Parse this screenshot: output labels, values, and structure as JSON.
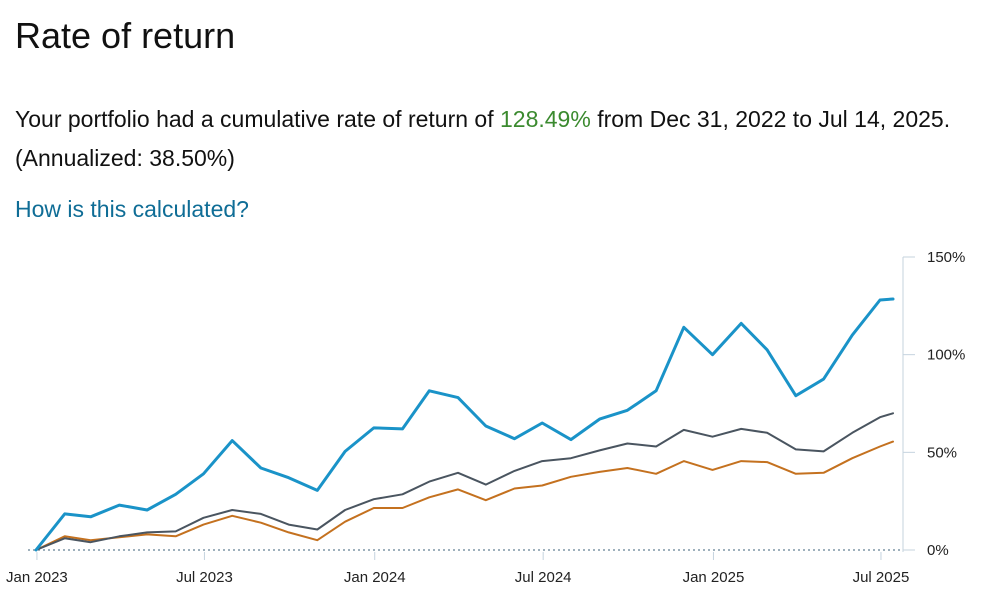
{
  "page": {
    "title": "Rate of return",
    "summary_prefix": "Your portfolio had a cumulative rate of return of ",
    "summary_rate": "128.49%",
    "summary_mid": " from Dec 31, 2022 to Jul 14, 2025. (Annualized: ",
    "summary_annualized": "38.50%",
    "summary_suffix": ")",
    "link_label": "How is this calculated?"
  },
  "colors": {
    "positive": "#3b8a2f",
    "link": "#0f6d96",
    "axis": "#c5d3de"
  },
  "chart_data": {
    "type": "line",
    "title": "",
    "xlabel": "",
    "ylabel": "",
    "ylim": [
      0,
      150
    ],
    "y_ticks": [
      0,
      50,
      100,
      150
    ],
    "y_tick_labels": [
      "0%",
      "50%",
      "100%",
      "150%"
    ],
    "x_ticks": [
      "2023-01-01",
      "2023-07-01",
      "2024-01-01",
      "2024-07-01",
      "2025-01-01",
      "2025-07-01"
    ],
    "x_tick_labels": [
      "Jan 2023",
      "Jul 2023",
      "Jan 2024",
      "Jul 2024",
      "Jan 2025",
      "Jul 2025"
    ],
    "x": [
      "2022-12-31",
      "2023-01-31",
      "2023-02-28",
      "2023-03-31",
      "2023-04-30",
      "2023-05-31",
      "2023-06-30",
      "2023-07-31",
      "2023-08-31",
      "2023-09-30",
      "2023-10-31",
      "2023-11-30",
      "2023-12-31",
      "2024-01-31",
      "2024-02-29",
      "2024-03-31",
      "2024-04-30",
      "2024-05-31",
      "2024-06-30",
      "2024-07-31",
      "2024-08-31",
      "2024-09-30",
      "2024-10-31",
      "2024-11-30",
      "2024-12-31",
      "2025-01-31",
      "2025-02-28",
      "2025-03-31",
      "2025-04-30",
      "2025-05-31",
      "2025-06-30",
      "2025-07-14"
    ],
    "y_axis_side": "right",
    "legend": "none",
    "grid": false,
    "series": [
      {
        "color": "#1a93c8",
        "values": [
          0,
          18.5,
          17,
          23,
          20.5,
          28.5,
          39,
          56,
          42,
          37,
          30.5,
          50.5,
          62.5,
          62,
          81.5,
          78,
          63.5,
          57,
          65,
          56.5,
          67,
          71.5,
          81.5,
          114,
          100,
          116,
          102.5,
          79,
          87.5,
          110,
          128,
          128.5
        ]
      },
      {
        "color": "#4a5560",
        "values": [
          0,
          6,
          4,
          7,
          9,
          9.5,
          16.5,
          20.5,
          18.5,
          13,
          10.5,
          20.5,
          26,
          28.5,
          35,
          39.5,
          33.5,
          40.5,
          45.5,
          47,
          51,
          54.5,
          53,
          61.5,
          58,
          62,
          60,
          51.5,
          50.5,
          60,
          68,
          70
        ]
      },
      {
        "color": "#c4711f",
        "values": [
          0,
          7,
          5,
          6.5,
          8,
          7,
          13,
          17.5,
          14,
          9,
          5,
          14.5,
          21.5,
          21.5,
          27,
          31,
          25.5,
          31.5,
          33,
          37.5,
          40,
          42,
          39,
          45.5,
          41,
          45.5,
          45,
          39,
          39.5,
          47,
          53,
          55.5
        ]
      }
    ]
  }
}
